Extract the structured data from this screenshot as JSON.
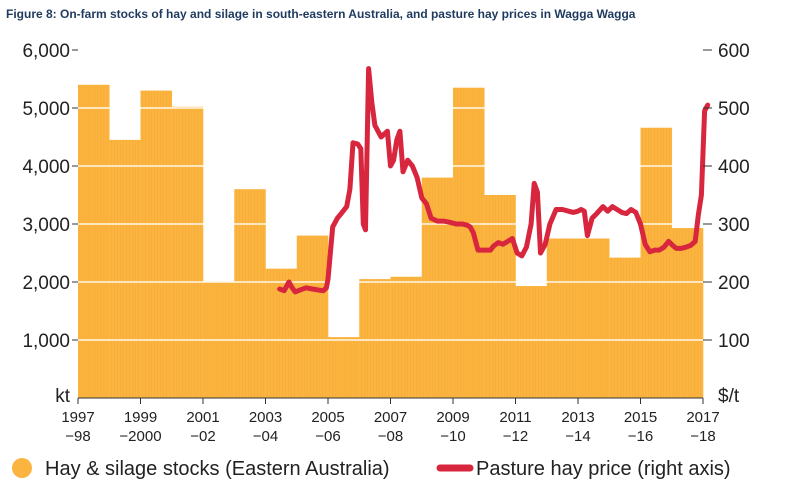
{
  "chart_data": {
    "type": "bar+line",
    "title": "Figure 8: On-farm stocks of hay and silage in south-eastern Australia, and pasture hay prices in Wagga Wagga",
    "left_axis": {
      "unit": "kt",
      "min": 0,
      "max": 6000,
      "ticks": [
        "6,000",
        "5,000",
        "4,000",
        "3,000",
        "2,000",
        "1,000"
      ],
      "tick_values": [
        6000,
        5000,
        4000,
        3000,
        2000,
        1000
      ]
    },
    "right_axis": {
      "unit": "$/t",
      "min": 0,
      "max": 600,
      "ticks": [
        "600",
        "500",
        "400",
        "300",
        "200",
        "100"
      ],
      "tick_values": [
        600,
        500,
        400,
        300,
        200,
        100
      ]
    },
    "x_ticks": [
      {
        "line1": "1997",
        "line2": "−98",
        "year": 1997
      },
      {
        "line1": "1999",
        "line2": "−2000",
        "year": 1999
      },
      {
        "line1": "2001",
        "line2": "−02",
        "year": 2001
      },
      {
        "line1": "2003",
        "line2": "−04",
        "year": 2003
      },
      {
        "line1": "2005",
        "line2": "−06",
        "year": 2005
      },
      {
        "line1": "2007",
        "line2": "−08",
        "year": 2007
      },
      {
        "line1": "2009",
        "line2": "−10",
        "year": 2009
      },
      {
        "line1": "2011",
        "line2": "−12",
        "year": 2011
      },
      {
        "line1": "2013",
        "line2": "−14",
        "year": 2013
      },
      {
        "line1": "2015",
        "line2": "−16",
        "year": 2015
      },
      {
        "line1": "2017",
        "line2": "−18",
        "year": 2017
      }
    ],
    "bars": {
      "name": "Hay & silage stocks (Eastern Australia)",
      "color": "#fbb440",
      "categories": [
        "1997-98",
        "1998-99",
        "1999-2000",
        "2000-01",
        "2001-02",
        "2002-03",
        "2003-04",
        "2004-05",
        "2005-06",
        "2006-07",
        "2007-08",
        "2008-09",
        "2009-10",
        "2010-11",
        "2011-12",
        "2012-13",
        "2013-14",
        "2014-15",
        "2015-16",
        "2016-17"
      ],
      "values": [
        5400,
        4450,
        5300,
        5020,
        2010,
        3600,
        2230,
        2800,
        1050,
        2050,
        2090,
        3800,
        5350,
        3500,
        1930,
        2750,
        2750,
        2420,
        4660,
        2930
      ]
    },
    "line": {
      "name": "Pasture hay price (right axis)",
      "color": "#d7263d",
      "x": [
        2003.45,
        2003.6,
        2003.75,
        2003.85,
        2003.95,
        2004.1,
        2004.3,
        2004.5,
        2004.7,
        2004.85,
        2004.95,
        2005.0,
        2005.15,
        2005.3,
        2005.45,
        2005.6,
        2005.7,
        2005.8,
        2005.95,
        2006.05,
        2006.13,
        2006.2,
        2006.3,
        2006.4,
        2006.5,
        2006.6,
        2006.7,
        2006.8,
        2006.9,
        2007.0,
        2007.1,
        2007.2,
        2007.3,
        2007.4,
        2007.55,
        2007.7,
        2007.85,
        2008.0,
        2008.15,
        2008.3,
        2008.5,
        2008.7,
        2008.9,
        2009.1,
        2009.3,
        2009.45,
        2009.55,
        2009.65,
        2009.8,
        2010.0,
        2010.2,
        2010.3,
        2010.45,
        2010.6,
        2010.75,
        2010.9,
        2011.05,
        2011.2,
        2011.35,
        2011.5,
        2011.6,
        2011.7,
        2011.8,
        2011.95,
        2012.1,
        2012.3,
        2012.5,
        2012.7,
        2012.85,
        2013.0,
        2013.1,
        2013.2,
        2013.3,
        2013.45,
        2013.6,
        2013.8,
        2013.95,
        2014.1,
        2014.25,
        2014.4,
        2014.55,
        2014.7,
        2014.85,
        2015.0,
        2015.15,
        2015.3,
        2015.45,
        2015.6,
        2015.75,
        2015.9,
        2016.05,
        2016.15,
        2016.3,
        2016.45,
        2016.6,
        2016.75,
        2016.85,
        2016.95,
        2017.05,
        2017.15
      ],
      "values": [
        188,
        185,
        200,
        190,
        183,
        186,
        190,
        188,
        186,
        185,
        190,
        205,
        295,
        310,
        320,
        330,
        360,
        440,
        438,
        430,
        300,
        290,
        568,
        510,
        470,
        460,
        450,
        455,
        460,
        400,
        410,
        445,
        460,
        390,
        410,
        400,
        380,
        345,
        335,
        310,
        305,
        305,
        303,
        300,
        300,
        298,
        295,
        285,
        255,
        255,
        255,
        262,
        268,
        265,
        270,
        275,
        250,
        245,
        260,
        300,
        370,
        355,
        250,
        265,
        300,
        325,
        325,
        322,
        320,
        322,
        325,
        322,
        280,
        310,
        318,
        330,
        322,
        330,
        325,
        320,
        318,
        325,
        320,
        300,
        265,
        252,
        255,
        255,
        260,
        270,
        262,
        258,
        258,
        260,
        263,
        270,
        315,
        350,
        495,
        505
      ]
    },
    "legend": [
      {
        "label": "Hay & silage stocks (Eastern Australia)",
        "color": "#fbb440",
        "shape": "circle"
      },
      {
        "label": "Pasture hay price (right axis)",
        "color": "#d7263d",
        "shape": "line"
      }
    ]
  }
}
